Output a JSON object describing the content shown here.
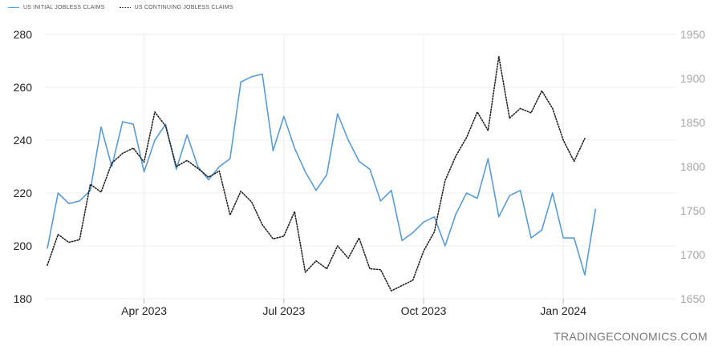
{
  "chart_data": {
    "type": "line",
    "legend": {
      "position": "top-left",
      "items": [
        "US INITIAL JOBLESS CLAIMS",
        "US CONTINUING JOBLESS CLAIMS"
      ]
    },
    "watermark": "TRADINGECONOMICS.COM",
    "x_ticks": [
      {
        "label": "Apr 2023",
        "index": 9
      },
      {
        "label": "Jul 2023",
        "index": 22
      },
      {
        "label": "Oct 2023",
        "index": 35
      },
      {
        "label": "Jan 2024",
        "index": 48
      }
    ],
    "left_axis": {
      "ylim": [
        180,
        280
      ],
      "ticks": [
        180,
        200,
        220,
        240,
        260,
        280
      ]
    },
    "right_axis": {
      "ylim": [
        1650,
        1950
      ],
      "ticks": [
        1650,
        1700,
        1750,
        1800,
        1850,
        1900,
        1950
      ]
    },
    "grid": true,
    "series": [
      {
        "name": "US INITIAL JOBLESS CLAIMS",
        "axis": "left",
        "color": "#5b9bd5",
        "style": "solid",
        "values": [
          199,
          220,
          216,
          217,
          221,
          245,
          230,
          247,
          246,
          228,
          240,
          246,
          229,
          242,
          230,
          225,
          230,
          233,
          262,
          264,
          265,
          236,
          249,
          237,
          228,
          221,
          227,
          250,
          240,
          232,
          229,
          217,
          221,
          202,
          205,
          209,
          211,
          200,
          212,
          220,
          218,
          233,
          211,
          219,
          221,
          203,
          206,
          220,
          203,
          203,
          189,
          214
        ]
      },
      {
        "name": "US CONTINUING JOBLESS CLAIMS",
        "axis": "right",
        "color": "#222222",
        "style": "dotted",
        "values": [
          1688,
          1723,
          1714,
          1717,
          1780,
          1771,
          1804,
          1815,
          1821,
          1805,
          1862,
          1846,
          1800,
          1807,
          1798,
          1788,
          1795,
          1745,
          1772,
          1760,
          1734,
          1718,
          1721,
          1749,
          1680,
          1693,
          1684,
          1710,
          1696,
          1719,
          1684,
          1683,
          1659,
          1665,
          1671,
          1704,
          1726,
          1784,
          1812,
          1833,
          1862,
          1841,
          1925,
          1855,
          1866,
          1861,
          1886,
          1866,
          1830,
          1806,
          1832
        ]
      }
    ]
  }
}
